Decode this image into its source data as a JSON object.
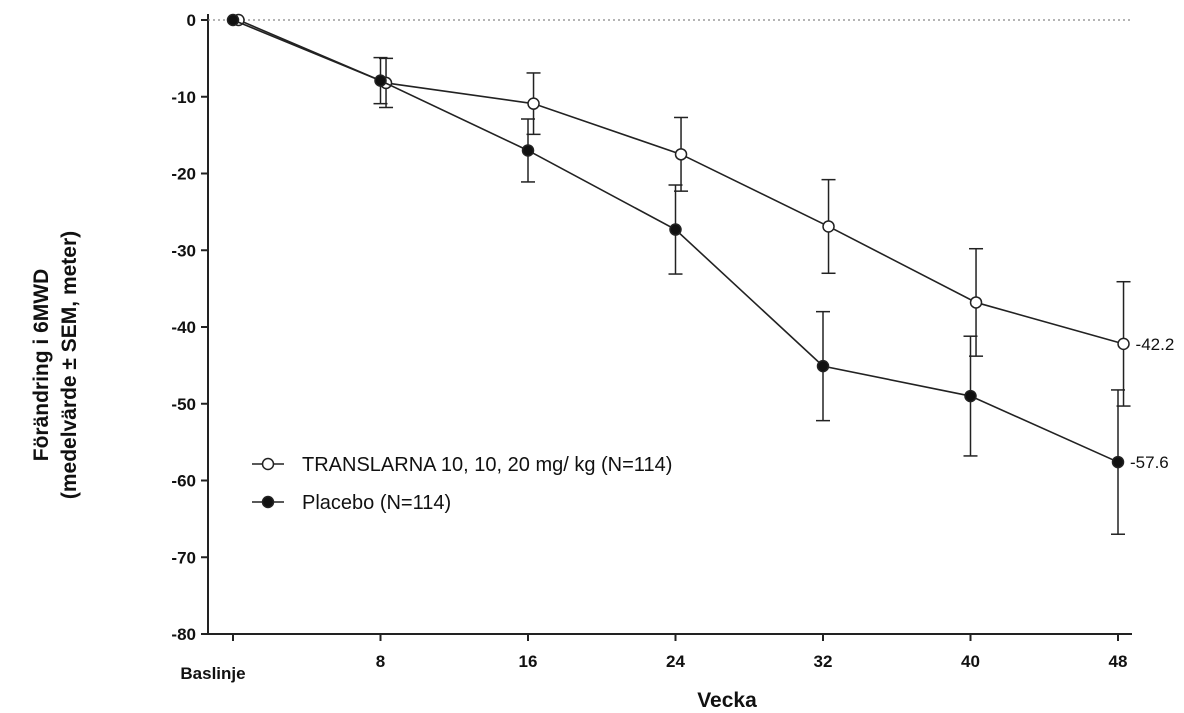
{
  "chart_data": {
    "type": "line",
    "title": "",
    "xlabel": "Vecka",
    "ylabel_line1": "Förändring i 6MWD",
    "ylabel_line2": "(medelvärde ± SEM, meter)",
    "x_ticks": [
      {
        "value": 0,
        "label": "Baslinje"
      },
      {
        "value": 8,
        "label": "8"
      },
      {
        "value": 16,
        "label": "16"
      },
      {
        "value": 24,
        "label": "24"
      },
      {
        "value": 32,
        "label": "32"
      },
      {
        "value": 40,
        "label": "40"
      },
      {
        "value": 48,
        "label": "48"
      }
    ],
    "y_ticks": [
      0,
      -10,
      -20,
      -30,
      -40,
      -50,
      -60,
      -70,
      -80
    ],
    "xlim": [
      -1,
      49
    ],
    "ylim": [
      -80,
      0
    ],
    "reference_line": {
      "y": 0,
      "style": "dotted"
    },
    "legend_position": "left-center",
    "series": [
      {
        "name": "TRANSLARNA 10, 10, 20 mg/ kg (N=114)",
        "marker": "open-circle",
        "x": [
          0.3,
          8.3,
          16.3,
          24.3,
          32.3,
          40.3,
          48.3
        ],
        "y": [
          0,
          -8.2,
          -10.9,
          -17.5,
          -26.9,
          -36.8,
          -42.2
        ],
        "sem": [
          0,
          3.2,
          4.0,
          4.8,
          6.1,
          7.0,
          8.1
        ],
        "end_label": "-42.2"
      },
      {
        "name": "Placebo (N=114)",
        "marker": "filled-circle",
        "x": [
          0,
          8,
          16,
          24,
          32,
          40,
          48
        ],
        "y": [
          0,
          -7.9,
          -17.0,
          -27.3,
          -45.1,
          -49.0,
          -57.6
        ],
        "sem": [
          0,
          3.0,
          4.1,
          5.8,
          7.1,
          7.8,
          9.4
        ],
        "end_label": "-57.6"
      }
    ]
  }
}
